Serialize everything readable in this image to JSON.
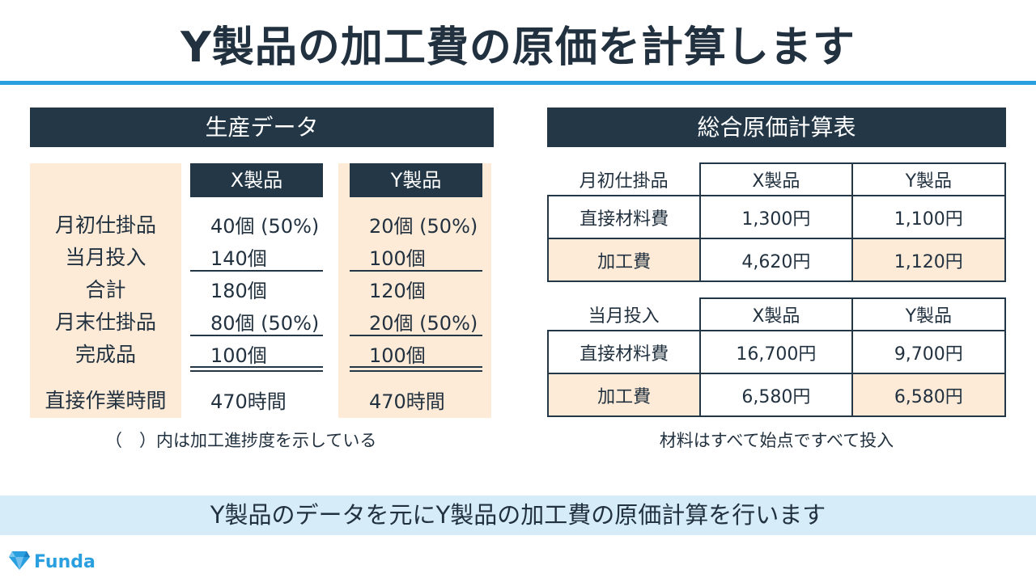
{
  "title": "Y製品の加工費の原価を計算します",
  "production": {
    "header": "生産データ",
    "col_x": "X製品",
    "col_y": "Y製品",
    "rows": [
      {
        "label": "月初仕掛品",
        "x": "40個 (50%)",
        "y": "20個 (50%)"
      },
      {
        "label": "当月投入",
        "x": "140個",
        "y": "100個"
      },
      {
        "label": "合計",
        "x": "180個",
        "y": "120個"
      },
      {
        "label": "月末仕掛品",
        "x": "80個 (50%)",
        "y": "20個 (50%)"
      },
      {
        "label": "完成品",
        "x": "100個",
        "y": "100個"
      },
      {
        "label": "直接作業時間",
        "x": "470時間",
        "y": "470時間"
      }
    ],
    "note": "（　）内は加工進捗度を示している"
  },
  "cost": {
    "header": "総合原価計算表",
    "col_x": "X製品",
    "col_y": "Y製品",
    "opening": {
      "label": "月初仕掛品",
      "rows": [
        {
          "label": "直接材料費",
          "x": "1,300円",
          "y": "1,100円"
        },
        {
          "label": "加工費",
          "x": "4,620円",
          "y": "1,120円"
        }
      ]
    },
    "current": {
      "label": "当月投入",
      "rows": [
        {
          "label": "直接材料費",
          "x": "16,700円",
          "y": "9,700円"
        },
        {
          "label": "加工費",
          "x": "6,580円",
          "y": "6,580円"
        }
      ]
    },
    "note": "材料はすべて始点ですべて投入"
  },
  "banner": "Y製品のデータを元にY製品の加工費の原価計算を行います",
  "brand": {
    "name": "Funda",
    "icon": "diamond-logo-icon",
    "accent": "#2a9fe0",
    "dark": "#243746",
    "cream": "#fdebd8"
  }
}
